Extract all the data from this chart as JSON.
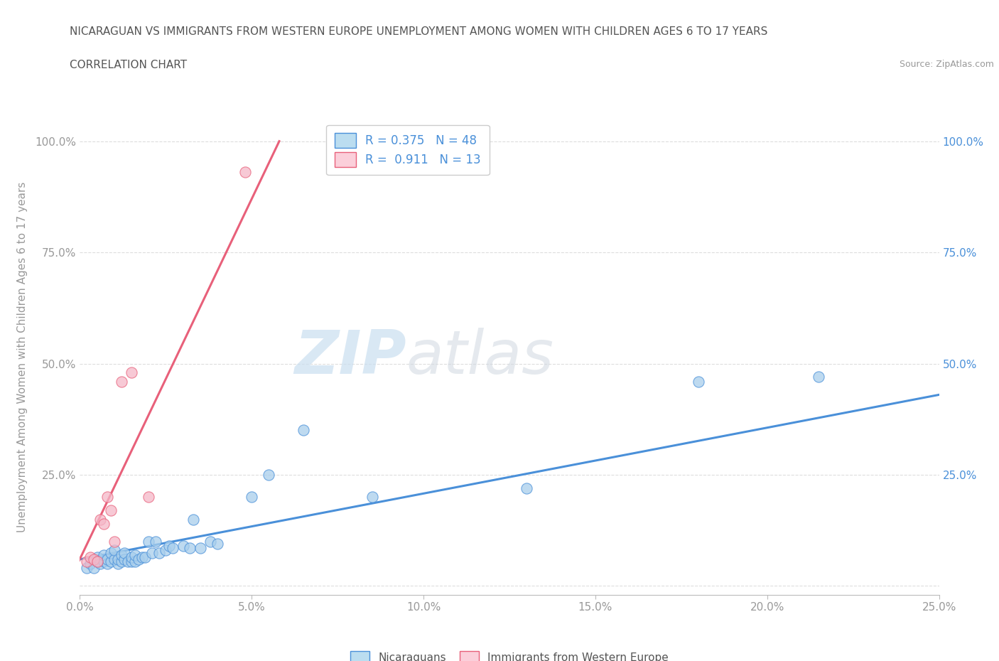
{
  "title_line1": "NICARAGUAN VS IMMIGRANTS FROM WESTERN EUROPE UNEMPLOYMENT AMONG WOMEN WITH CHILDREN AGES 6 TO 17 YEARS",
  "title_line2": "CORRELATION CHART",
  "source": "Source: ZipAtlas.com",
  "ylabel": "Unemployment Among Women with Children Ages 6 to 17 years",
  "watermark_zip": "ZIP",
  "watermark_atlas": "atlas",
  "xlim": [
    0.0,
    0.25
  ],
  "ylim": [
    -0.02,
    1.05
  ],
  "xtick_labels": [
    "0.0%",
    "5.0%",
    "10.0%",
    "15.0%",
    "20.0%",
    "25.0%"
  ],
  "xtick_values": [
    0.0,
    0.05,
    0.1,
    0.15,
    0.2,
    0.25
  ],
  "ytick_labels": [
    "",
    "25.0%",
    "50.0%",
    "75.0%",
    "100.0%"
  ],
  "ytick_values": [
    0.0,
    0.25,
    0.5,
    0.75,
    1.0
  ],
  "blue_scatter_x": [
    0.002,
    0.003,
    0.004,
    0.005,
    0.005,
    0.006,
    0.007,
    0.007,
    0.008,
    0.008,
    0.009,
    0.009,
    0.01,
    0.01,
    0.011,
    0.011,
    0.012,
    0.012,
    0.013,
    0.013,
    0.014,
    0.015,
    0.015,
    0.016,
    0.016,
    0.017,
    0.018,
    0.019,
    0.02,
    0.021,
    0.022,
    0.023,
    0.025,
    0.026,
    0.027,
    0.03,
    0.032,
    0.033,
    0.035,
    0.038,
    0.04,
    0.05,
    0.055,
    0.065,
    0.085,
    0.13,
    0.18,
    0.215
  ],
  "blue_scatter_y": [
    0.04,
    0.05,
    0.04,
    0.055,
    0.065,
    0.05,
    0.055,
    0.07,
    0.05,
    0.06,
    0.055,
    0.075,
    0.06,
    0.08,
    0.05,
    0.06,
    0.055,
    0.07,
    0.06,
    0.075,
    0.055,
    0.055,
    0.065,
    0.055,
    0.07,
    0.06,
    0.065,
    0.065,
    0.1,
    0.075,
    0.1,
    0.075,
    0.08,
    0.09,
    0.085,
    0.09,
    0.085,
    0.15,
    0.085,
    0.1,
    0.095,
    0.2,
    0.25,
    0.35,
    0.2,
    0.22,
    0.46,
    0.47
  ],
  "pink_scatter_x": [
    0.002,
    0.003,
    0.004,
    0.005,
    0.006,
    0.007,
    0.008,
    0.009,
    0.01,
    0.012,
    0.015,
    0.02,
    0.048
  ],
  "pink_scatter_y": [
    0.055,
    0.065,
    0.06,
    0.055,
    0.15,
    0.14,
    0.2,
    0.17,
    0.1,
    0.46,
    0.48,
    0.2,
    0.93
  ],
  "blue_R": 0.375,
  "blue_N": 48,
  "pink_R": 0.911,
  "pink_N": 13,
  "blue_line_x": [
    0.0,
    0.25
  ],
  "blue_line_y": [
    0.06,
    0.43
  ],
  "pink_line_x": [
    -0.005,
    0.058
  ],
  "pink_line_y": [
    -0.02,
    1.0
  ],
  "blue_color": "#A8CEEC",
  "pink_color": "#F5B8C8",
  "blue_line_color": "#4A90D9",
  "pink_line_color": "#E8607A",
  "blue_fill_color": "#BBDDF0",
  "pink_fill_color": "#FBCFDA",
  "legend_label_blue": "Nicaraguans",
  "legend_label_pink": "Immigrants from Western Europe",
  "grid_color": "#DDDDDD",
  "bg_color": "#FFFFFF",
  "text_color": "#555555",
  "title_color": "#555555",
  "axis_label_color": "#999999"
}
